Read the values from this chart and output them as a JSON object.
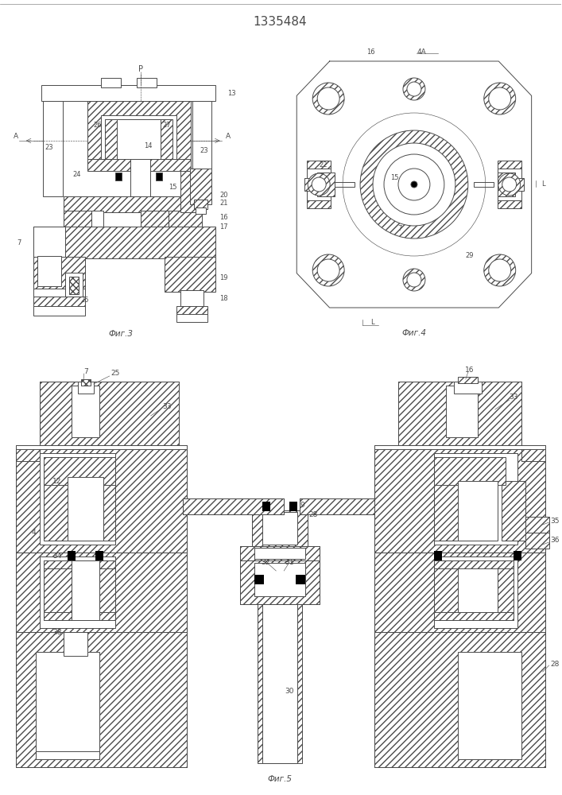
{
  "title": "1335484",
  "title_fontsize": 11,
  "background_color": "#ffffff",
  "line_color": "#4a4a4a",
  "fig3_label": "Фиг.3",
  "fig4_label": "Фиг.4",
  "fig5_label": "Фиг.5",
  "hatch_density": "////",
  "lw": 0.7
}
